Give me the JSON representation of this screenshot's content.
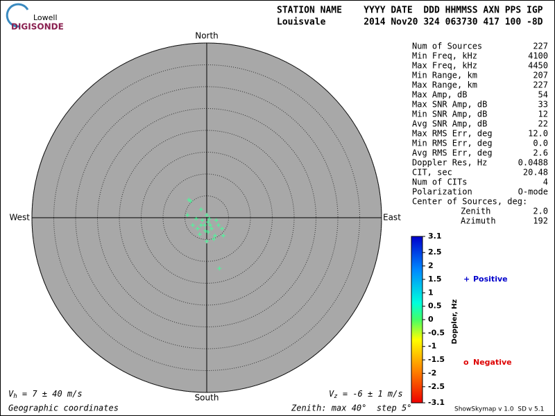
{
  "logo": {
    "top": "Lowell",
    "bottom": "DIGISONDE"
  },
  "header": {
    "labels": "STATION NAME    YYYY DATE  DDD HHMMSS AXN PPS IGP",
    "values": "Louisvale       2014 Nov20 324 063730 417 100 -8D"
  },
  "stats": {
    "rows": [
      [
        "Num of Sources",
        "227"
      ],
      [
        "Min Freq, kHz",
        "4100"
      ],
      [
        "Max Freq, kHz",
        "4450"
      ],
      [
        "Min Range, km",
        "207"
      ],
      [
        "Max Range, km",
        "227"
      ],
      [
        "Max Amp, dB",
        "54"
      ],
      [
        "Max SNR Amp, dB",
        "33"
      ],
      [
        "Min SNR Amp, dB",
        "12"
      ],
      [
        "Avg SNR Amp, dB",
        "22"
      ],
      [
        "Max RMS Err, deg",
        "12.0"
      ],
      [
        "Min RMS Err, deg",
        "0.0"
      ],
      [
        "Avg RMS Err, deg",
        "2.6"
      ],
      [
        "Doppler Res, Hz",
        "0.0488"
      ],
      [
        "CIT, sec",
        "20.48"
      ],
      [
        "Num of CITs",
        "4"
      ],
      [
        "Polarization",
        "O-mode"
      ]
    ],
    "center_title": "Center of Sources, deg:",
    "center_rows": [
      [
        "Zenith",
        "2.0"
      ],
      [
        "Azimuth",
        "192"
      ]
    ]
  },
  "chart_data": {
    "type": "polar-scatter",
    "directions": {
      "north": "North",
      "south": "South",
      "east": "East",
      "west": "West"
    },
    "rlim": [
      0,
      40
    ],
    "rticks": [
      5,
      10,
      15,
      20,
      25,
      30,
      35,
      40
    ],
    "color": "#44ff99",
    "x": [
      -4.1,
      -3.7,
      2.9,
      -1.3,
      -4.4,
      -2.4,
      0.3,
      -0.5,
      1.1,
      1.9,
      0,
      -1.6,
      2.7,
      3.5,
      -1,
      0.6,
      0,
      -2.1,
      1.6,
      2.2,
      -0.3,
      0.8,
      -1.3,
      0.3,
      -3.2,
      3.8
    ],
    "y": [
      4.1,
      3.8,
      -11.6,
      1.9,
      0.6,
      -0.2,
      -1.0,
      -1.7,
      -2.5,
      -4.1,
      -5.4,
      -3.8,
      -1.7,
      -2.5,
      -0.6,
      -0.2,
      0.6,
      -2.5,
      -4.9,
      -0.6,
      -3.0,
      -1.7,
      -1.7,
      -3.3,
      -1.7,
      -4.1
    ],
    "legend": [
      {
        "symbol": "+",
        "label": "Positive",
        "color": "#0000cc"
      },
      {
        "symbol": "o",
        "label": "Negative",
        "color": "#dd0000"
      }
    ],
    "colorbar": {
      "label": "Doppler, Hz",
      "lim": [
        -3.1,
        3.1
      ],
      "ticks": [
        3.1,
        2.5,
        2,
        1.5,
        1,
        0.5,
        0,
        -0.5,
        -1,
        -1.5,
        -2,
        -2.5,
        -3.1
      ]
    }
  },
  "footer": {
    "vh_symbol": "V",
    "vh_sub": "h",
    "vh_text": " = 7 ± 40 m/s",
    "vz_symbol": "V",
    "vz_sub": "z",
    "vz_text": " = -6 ± 1 m/s",
    "coords": "Geographic coordinates",
    "zenith": "Zenith: max 40°  step 5°",
    "version": "ShowSkymap v 1.0  SD v 5.1"
  }
}
